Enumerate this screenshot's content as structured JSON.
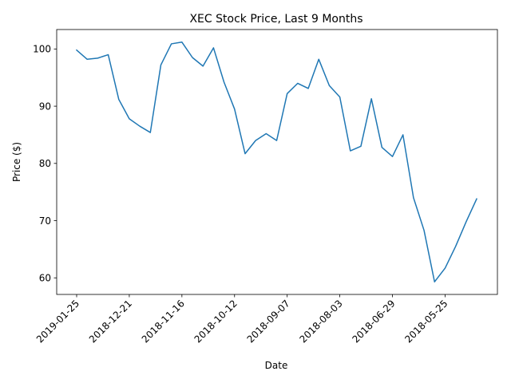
{
  "chart_data": {
    "type": "line",
    "title": "XEC Stock Price, Last 9 Months",
    "xlabel": "Date",
    "ylabel": "Price ($)",
    "x_axis_reversed": true,
    "x_tick_labels": [
      "2019-01-25",
      "2018-12-21",
      "2018-11-16",
      "2018-10-12",
      "2018-09-07",
      "2018-08-03",
      "2018-06-29",
      "2018-05-25"
    ],
    "x_tick_indices": [
      0,
      5,
      10,
      15,
      20,
      25,
      30,
      35
    ],
    "y_ticks": [
      60,
      70,
      80,
      90,
      100
    ],
    "ylim": [
      57.1,
      103.4
    ],
    "grid": false,
    "legend": "none",
    "series": [
      {
        "color": "#1f77b4",
        "x": [
          "2019-01-25",
          "2019-01-18",
          "2019-01-11",
          "2019-01-04",
          "2018-12-28",
          "2018-12-21",
          "2018-12-14",
          "2018-12-07",
          "2018-11-30",
          "2018-11-23",
          "2018-11-16",
          "2018-11-09",
          "2018-11-02",
          "2018-10-26",
          "2018-10-19",
          "2018-10-12",
          "2018-10-05",
          "2018-09-28",
          "2018-09-21",
          "2018-09-14",
          "2018-09-07",
          "2018-08-31",
          "2018-08-24",
          "2018-08-17",
          "2018-08-10",
          "2018-08-03",
          "2018-07-27",
          "2018-07-20",
          "2018-07-13",
          "2018-07-06",
          "2018-06-29",
          "2018-06-22",
          "2018-06-15",
          "2018-06-08",
          "2018-06-01",
          "2018-05-25",
          "2018-05-18",
          "2018-05-11",
          "2018-05-04"
        ],
        "values": [
          99.8,
          98.2,
          98.4,
          99.0,
          91.2,
          87.8,
          86.5,
          85.4,
          97.2,
          100.9,
          101.2,
          98.5,
          97.0,
          100.2,
          94.2,
          89.5,
          81.7,
          84.0,
          85.2,
          84.0,
          92.2,
          94.0,
          93.1,
          98.2,
          93.6,
          91.6,
          82.2,
          83.0,
          91.3,
          82.8,
          81.2,
          85.0,
          74.0,
          68.3,
          59.3,
          61.7,
          65.5,
          69.8,
          73.8
        ]
      }
    ]
  }
}
